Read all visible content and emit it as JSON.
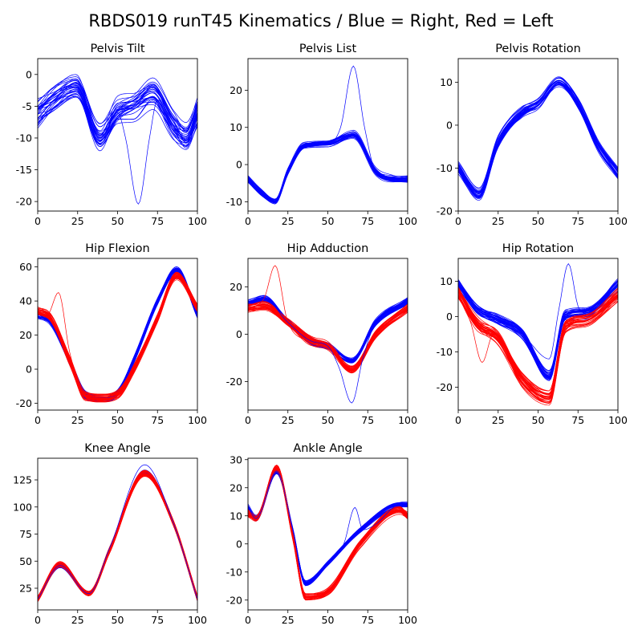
{
  "title": "RBDS019 runT45 Kinematics / Blue = Right, Red = Left",
  "colors": {
    "right": "#0000ff",
    "left": "#ff0000"
  },
  "chart_data": [
    {
      "type": "line",
      "title": "Pelvis Tilt",
      "xlim": [
        0,
        100
      ],
      "ylim": [
        -21.5,
        2.5
      ],
      "xticks": [
        0,
        25,
        50,
        75,
        100
      ],
      "yticks": [
        -20,
        -15,
        -10,
        -5,
        0
      ],
      "x": [
        0,
        10,
        24,
        39,
        50,
        60,
        72,
        85,
        93,
        100
      ],
      "series": [
        {
          "side": "right",
          "values": [
            -6,
            -4,
            -2,
            -10,
            -6,
            -5,
            -3,
            -8,
            -10,
            -6
          ],
          "spread": 3.5,
          "count": 30
        }
      ],
      "outliers": [
        {
          "side": "right",
          "x": [
            0,
            10,
            24,
            39,
            50,
            55,
            63,
            70,
            75,
            85,
            93,
            100
          ],
          "values": [
            -7,
            -4,
            -2,
            -10,
            -6,
            -10,
            -20.4,
            -10,
            -4,
            -8,
            -10,
            -6
          ]
        }
      ]
    },
    {
      "type": "line",
      "title": "Pelvis List",
      "xlim": [
        0,
        100
      ],
      "ylim": [
        -12.5,
        28.5
      ],
      "xticks": [
        0,
        25,
        50,
        75,
        100
      ],
      "yticks": [
        -10,
        0,
        10,
        20
      ],
      "x": [
        0,
        8,
        17,
        25,
        35,
        50,
        66,
        80,
        90,
        100
      ],
      "series": [
        {
          "side": "right",
          "values": [
            -4,
            -7.5,
            -10,
            -2,
            5,
            5.5,
            8,
            -2,
            -4,
            -4
          ],
          "spread": 1.5,
          "count": 30
        }
      ],
      "outliers": [
        {
          "side": "right",
          "x": [
            0,
            8,
            17,
            25,
            35,
            50,
            58,
            66,
            73,
            80,
            90,
            100
          ],
          "values": [
            -4,
            -7.5,
            -10,
            -2,
            5,
            5.5,
            10,
            26.5,
            10,
            -2,
            -4,
            -4
          ]
        }
      ]
    },
    {
      "type": "line",
      "title": "Pelvis Rotation",
      "xlim": [
        0,
        100
      ],
      "ylim": [
        -20,
        15.5
      ],
      "xticks": [
        0,
        25,
        50,
        75,
        100
      ],
      "yticks": [
        -20,
        -10,
        0,
        10
      ],
      "x": [
        0,
        13,
        25,
        40,
        50,
        63,
        75,
        88,
        100
      ],
      "series": [
        {
          "side": "right",
          "values": [
            -10,
            -16,
            -4,
            3,
            5,
            10,
            5,
            -5,
            -11
          ],
          "spread": 2,
          "count": 30
        }
      ],
      "outliers": []
    },
    {
      "type": "line",
      "title": "Hip Flexion",
      "xlim": [
        0,
        100
      ],
      "ylim": [
        -24,
        65
      ],
      "xticks": [
        0,
        25,
        50,
        75,
        100
      ],
      "yticks": [
        -20,
        0,
        20,
        40,
        60
      ],
      "x": [
        0,
        8,
        20,
        30,
        40,
        50,
        60,
        75,
        87,
        100
      ],
      "series": [
        {
          "side": "right",
          "values": [
            32,
            28,
            5,
            -15,
            -17,
            -14,
            5,
            40,
            58,
            32
          ],
          "spread": 3,
          "count": 30
        },
        {
          "side": "left",
          "values": [
            34,
            30,
            5,
            -16,
            -17,
            -15,
            0,
            30,
            55,
            36
          ],
          "spread": 4,
          "count": 30
        }
      ],
      "outliers": [
        {
          "side": "left",
          "x": [
            0,
            6,
            13,
            20,
            30,
            40,
            50,
            60,
            75,
            87,
            100
          ],
          "values": [
            34,
            32,
            45,
            10,
            -16,
            -17,
            -15,
            0,
            30,
            55,
            36
          ]
        }
      ]
    },
    {
      "type": "line",
      "title": "Hip Adduction",
      "xlim": [
        0,
        100
      ],
      "ylim": [
        -32,
        32
      ],
      "xticks": [
        0,
        25,
        50,
        75,
        100
      ],
      "yticks": [
        -20,
        0,
        20
      ],
      "x": [
        0,
        10,
        25,
        40,
        50,
        65,
        80,
        100
      ],
      "series": [
        {
          "side": "right",
          "values": [
            13,
            15,
            5,
            -3,
            -5,
            -11,
            5,
            14
          ],
          "spread": 2,
          "count": 30
        },
        {
          "side": "left",
          "values": [
            11,
            12,
            5,
            -3,
            -5,
            -15,
            0,
            11
          ],
          "spread": 2.5,
          "count": 30
        }
      ],
      "outliers": [
        {
          "side": "left",
          "x": [
            0,
            10,
            17,
            25,
            40,
            50,
            65,
            80,
            100
          ],
          "values": [
            11,
            15,
            29,
            5,
            -3,
            -5,
            -15,
            0,
            11
          ]
        },
        {
          "side": "right",
          "x": [
            0,
            10,
            25,
            40,
            50,
            57,
            65,
            72,
            80,
            100
          ],
          "values": [
            13,
            15,
            5,
            -3,
            -5,
            -14,
            -29,
            -10,
            5,
            14
          ]
        }
      ]
    },
    {
      "type": "line",
      "title": "Hip Rotation",
      "xlim": [
        0,
        100
      ],
      "ylim": [
        -26.5,
        16.5
      ],
      "xticks": [
        0,
        25,
        50,
        75,
        100
      ],
      "yticks": [
        -20,
        -10,
        0,
        10
      ],
      "x": [
        0,
        12,
        25,
        40,
        57,
        67,
        80,
        100
      ],
      "series": [
        {
          "side": "right",
          "values": [
            9,
            2,
            -1,
            -5,
            -17,
            0,
            1,
            9
          ],
          "spread": 2.5,
          "count": 30
        },
        {
          "side": "left",
          "values": [
            7,
            -2,
            -6,
            -18,
            -23,
            -3,
            -1,
            6
          ],
          "spread": 3,
          "count": 30
        }
      ],
      "outliers": [
        {
          "side": "left",
          "x": [
            0,
            8,
            15,
            22,
            40,
            57,
            67,
            80,
            100
          ],
          "values": [
            7,
            -2,
            -13,
            -5,
            -18,
            -23,
            -3,
            -1,
            6
          ]
        },
        {
          "side": "right",
          "x": [
            0,
            12,
            25,
            40,
            57,
            63,
            69,
            75,
            80,
            100
          ],
          "values": [
            9,
            2,
            -1,
            -5,
            -12,
            2,
            15,
            3,
            1,
            9
          ]
        }
      ]
    },
    {
      "type": "line",
      "title": "Knee Angle",
      "xlim": [
        0,
        100
      ],
      "ylim": [
        5,
        145
      ],
      "xticks": [
        0,
        25,
        50,
        75,
        100
      ],
      "yticks": [
        25,
        50,
        75,
        100,
        125
      ],
      "x": [
        0,
        14,
        32,
        45,
        67,
        85,
        100
      ],
      "series": [
        {
          "side": "right",
          "values": [
            15,
            46,
            20,
            60,
            132,
            85,
            15
          ],
          "spread": 3,
          "count": 30
        },
        {
          "side": "left",
          "values": [
            15,
            47,
            20,
            60,
            131,
            85,
            16
          ],
          "spread": 4,
          "count": 30
        }
      ],
      "outliers": [
        {
          "side": "right",
          "x": [
            0,
            14,
            32,
            45,
            67,
            85,
            100
          ],
          "values": [
            15,
            46,
            20,
            62,
            139,
            85,
            15
          ]
        }
      ]
    },
    {
      "type": "line",
      "title": "Ankle Angle",
      "xlim": [
        0,
        100
      ],
      "ylim": [
        -23.5,
        30.5
      ],
      "xticks": [
        0,
        25,
        50,
        75,
        100
      ],
      "yticks": [
        -20,
        -10,
        0,
        10,
        20,
        30
      ],
      "x": [
        0,
        5,
        18,
        28,
        36,
        50,
        70,
        95,
        100
      ],
      "series": [
        {
          "side": "right",
          "values": [
            13,
            9,
            26,
            5,
            -14,
            -7,
            5,
            14,
            14
          ],
          "spread": 1.5,
          "count": 30
        },
        {
          "side": "left",
          "values": [
            11,
            9,
            27,
            3,
            -19,
            -17,
            0,
            12,
            10
          ],
          "spread": 2,
          "count": 30
        }
      ],
      "outliers": [
        {
          "side": "right",
          "x": [
            0,
            5,
            18,
            28,
            36,
            50,
            60,
            67,
            72,
            80,
            95,
            100
          ],
          "values": [
            13,
            9,
            26,
            5,
            -14,
            -7,
            0,
            13,
            5,
            7,
            14,
            14
          ]
        }
      ]
    }
  ]
}
